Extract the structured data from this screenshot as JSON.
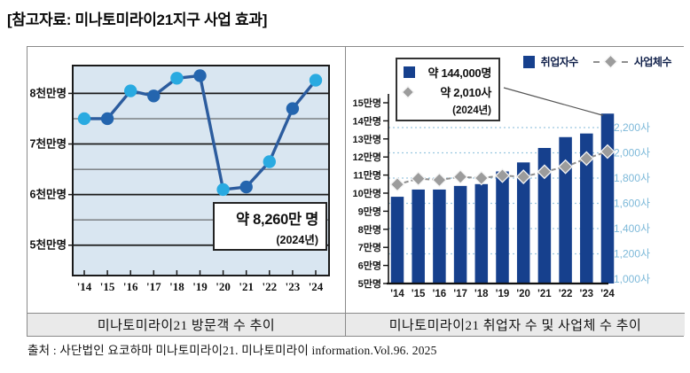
{
  "page": {
    "title": "[참고자료: 미나토미라이21지구 사업 효과]",
    "source": "출처 : 사단법인 요코하마 미나토미라이21. 미나토미라이 information.Vol.96. 2025"
  },
  "colors": {
    "bar_navy": "#16408d",
    "dot_light_blue": "#29aae1",
    "dot_dark_blue": "#2465ae",
    "line_blue": "#2c5c9e",
    "diamond_gray": "#9c9c9c",
    "dashed_gray": "#8f8f8f",
    "right_axis_blue": "#7db9d9",
    "grid_dotted_blue": "#9cc8e0",
    "plot_bg_blue": "#d9e6f1",
    "caption_bg": "#eaeaea"
  },
  "chart_data": [
    {
      "type": "line",
      "title": "미나토미라이21 방문객 수 추이",
      "x": [
        "'14",
        "'15",
        "'16",
        "'17",
        "'18",
        "'19",
        "'20",
        "'21",
        "'22",
        "'23",
        "'24"
      ],
      "values_10m_people": [
        7.5,
        7.5,
        8.05,
        7.95,
        8.3,
        8.35,
        6.1,
        6.15,
        6.65,
        7.7,
        8.26
      ],
      "y_ticks": [
        {
          "label": "8천만명",
          "value": 8
        },
        {
          "label": "7천만명",
          "value": 7
        },
        {
          "label": "6천만명",
          "value": 6
        },
        {
          "label": "5천만명",
          "value": 5
        }
      ],
      "y_minor_grid": [
        7.5,
        6.5,
        5.5
      ],
      "ylim": [
        4.4,
        8.55
      ],
      "annotation": {
        "value": "약 8,260만 명",
        "year": "(2024년)"
      }
    },
    {
      "type": "bar+line",
      "title": "미나토미라이21 취업자 수 및 사업체 수 추이",
      "categories": [
        "'14",
        "'15",
        "'16",
        "'17",
        "'18",
        "'19",
        "'20",
        "'21",
        "'22",
        "'23",
        "'24"
      ],
      "series": [
        {
          "name": "취업자수",
          "type": "bar",
          "axis": "left",
          "unit": "만명",
          "values": [
            9.8,
            10.2,
            10.2,
            10.4,
            10.5,
            11.2,
            11.7,
            12.5,
            13.1,
            13.3,
            14.4
          ]
        },
        {
          "name": "사업체수",
          "type": "line",
          "marker": "diamond",
          "axis": "right",
          "unit": "사",
          "values": [
            1750,
            1795,
            1785,
            1810,
            1800,
            1820,
            1810,
            1850,
            1890,
            1955,
            2010
          ]
        }
      ],
      "left_axis": {
        "unit": "만명",
        "lim": [
          5,
          15.5
        ],
        "ticks": [
          {
            "label": "15만명",
            "value": 15
          },
          {
            "label": "14만명",
            "value": 14
          },
          {
            "label": "13만명",
            "value": 13
          },
          {
            "label": "12만명",
            "value": 12
          },
          {
            "label": "11만명",
            "value": 11
          },
          {
            "label": "10만명",
            "value": 10
          },
          {
            "label": "9만명",
            "value": 9
          },
          {
            "label": "8만명",
            "value": 8
          },
          {
            "label": "7만명",
            "value": 7
          },
          {
            "label": "6만명",
            "value": 6
          },
          {
            "label": "5만명",
            "value": 5
          }
        ]
      },
      "right_axis": {
        "unit": "사",
        "lim": [
          1000,
          2250
        ],
        "grid_values": [
          2200,
          2000,
          1800,
          1600,
          1400,
          1200
        ],
        "ticks": [
          {
            "label": "2,200사",
            "value": 2200
          },
          {
            "label": "2,000사",
            "value": 2000
          },
          {
            "label": "1,800사",
            "value": 1800
          },
          {
            "label": "1,600사",
            "value": 1600
          },
          {
            "label": "1,400사",
            "value": 1400
          },
          {
            "label": "1,200사",
            "value": 1200
          },
          {
            "label": "1,000사",
            "value": 1000
          }
        ]
      },
      "annotation": {
        "employees": "약 144,000명",
        "businesses": "약 2,010사",
        "year": "(2024년)"
      }
    }
  ]
}
